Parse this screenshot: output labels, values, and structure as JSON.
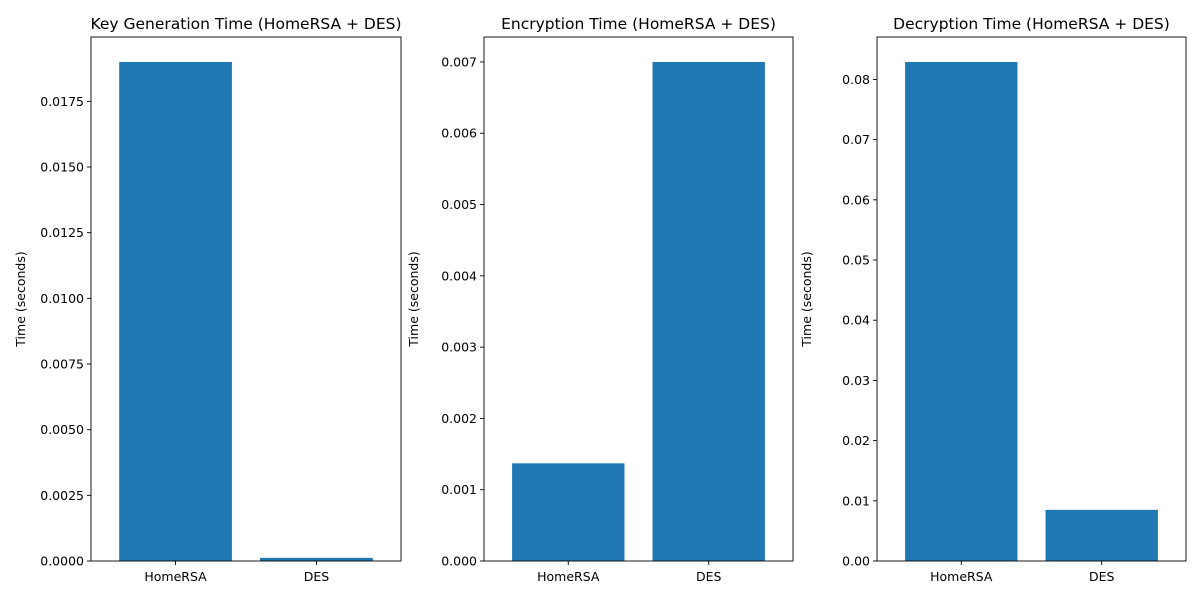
{
  "chart_data": [
    {
      "type": "bar",
      "title": "Key Generation Time (HomeRSA + DES)",
      "xlabel": "",
      "ylabel": "Time (seconds)",
      "categories": [
        "HomeRSA",
        "DES"
      ],
      "values": [
        0.019,
        0.00012
      ],
      "ylim": [
        0,
        0.01995
      ],
      "yticks": [
        0.0,
        0.0025,
        0.005,
        0.0075,
        0.01,
        0.0125,
        0.015,
        0.0175
      ],
      "ytick_labels": [
        "0.0000",
        "0.0025",
        "0.0050",
        "0.0075",
        "0.0100",
        "0.0125",
        "0.0150",
        "0.0175"
      ],
      "color": "#1f77b4",
      "grid": false
    },
    {
      "type": "bar",
      "title": "Encryption Time (HomeRSA + DES)",
      "xlabel": "",
      "ylabel": "Time (seconds)",
      "categories": [
        "HomeRSA",
        "DES"
      ],
      "values": [
        0.00137,
        0.007
      ],
      "ylim": [
        0,
        0.00735
      ],
      "yticks": [
        0.0,
        0.001,
        0.002,
        0.003,
        0.004,
        0.005,
        0.006,
        0.007
      ],
      "ytick_labels": [
        "0.000",
        "0.001",
        "0.002",
        "0.003",
        "0.004",
        "0.005",
        "0.006",
        "0.007"
      ],
      "color": "#1f77b4",
      "grid": false
    },
    {
      "type": "bar",
      "title": "Decryption Time (HomeRSA + DES)",
      "xlabel": "",
      "ylabel": "Time (seconds)",
      "categories": [
        "HomeRSA",
        "DES"
      ],
      "values": [
        0.0829,
        0.0085
      ],
      "ylim": [
        0,
        0.08705
      ],
      "yticks": [
        0.0,
        0.01,
        0.02,
        0.03,
        0.04,
        0.05,
        0.06,
        0.07,
        0.08
      ],
      "ytick_labels": [
        "0.00",
        "0.01",
        "0.02",
        "0.03",
        "0.04",
        "0.05",
        "0.06",
        "0.07",
        "0.08"
      ],
      "color": "#1f77b4",
      "grid": false
    }
  ]
}
